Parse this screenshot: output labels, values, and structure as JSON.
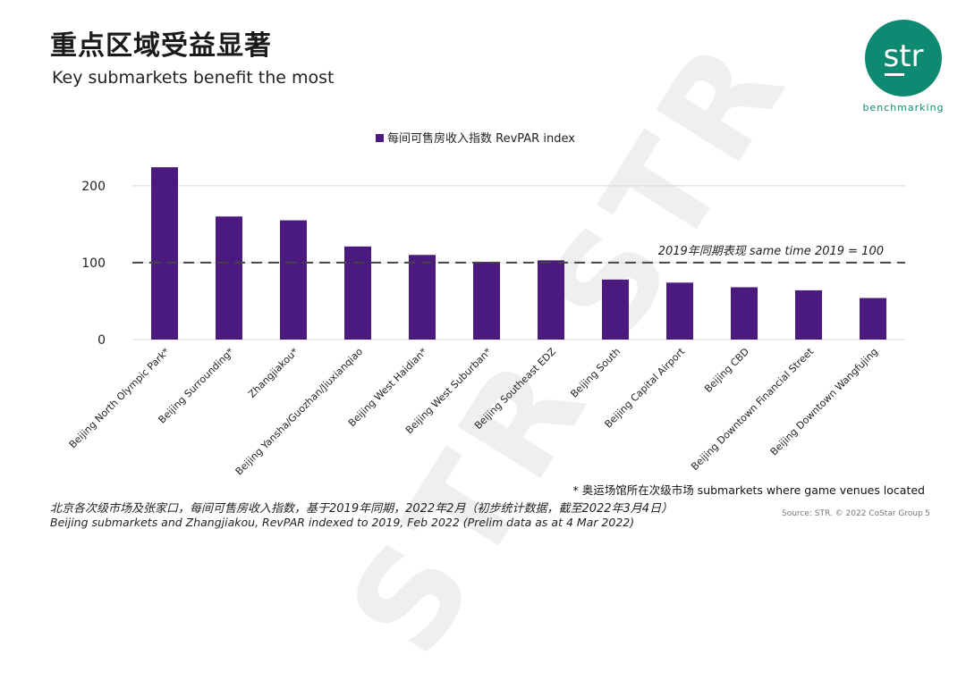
{
  "slide": {
    "title": "重点区域受益显著",
    "subtitle": "Key submarkets benefit the most",
    "logo_text": "str",
    "logo_tagline": "benchmarking",
    "watermark": "STR STR",
    "footnote": "* 奥运场馆所在次级市场 submarkets where game venues located",
    "foot_cn": "北京各次级市场及张家口，每间可售房收入指数，基于2019年同期，2022年2月（初步统计数据，截至2022年3月4日）",
    "foot_en": "Beijing submarkets and Zhangjiakou, RevPAR indexed to 2019, Feb 2022 (Prelim data as at 4 Mar 2022)",
    "source": "Source: STR. © 2022 CoStar Group",
    "page_number": "5"
  },
  "colors": {
    "bar": "#4a1a7e",
    "brand": "#0f8a72",
    "grid": "#d9d9d9"
  },
  "chart_data": {
    "type": "bar",
    "categories": [
      "Beijing North Olympic Park*",
      "Beijing Surrounding*",
      "Zhangjiakou*",
      "Beijing Yansha/Guozhan/Jiuxianqiao",
      "Beijing West Haidian*",
      "Beijing West Suburban*",
      "Beijing Southeast EDZ",
      "Beijing South",
      "Beijing Capital Airport",
      "Beijing CBD",
      "Beijing Downtown Financial Street",
      "Beijing Downtown Wangfujing"
    ],
    "series": [
      {
        "name": "每间可售房收入指数 RevPAR index",
        "values": [
          224,
          160,
          155,
          121,
          110,
          101,
          103,
          78,
          74,
          68,
          64,
          54
        ]
      }
    ],
    "ylim": [
      0,
      230
    ],
    "yticks": [
      0,
      100,
      200
    ],
    "reference_line": {
      "value": 100,
      "label": "2019年同期表现  same time 2019 = 100"
    },
    "grid": true,
    "legend": "top-center"
  }
}
